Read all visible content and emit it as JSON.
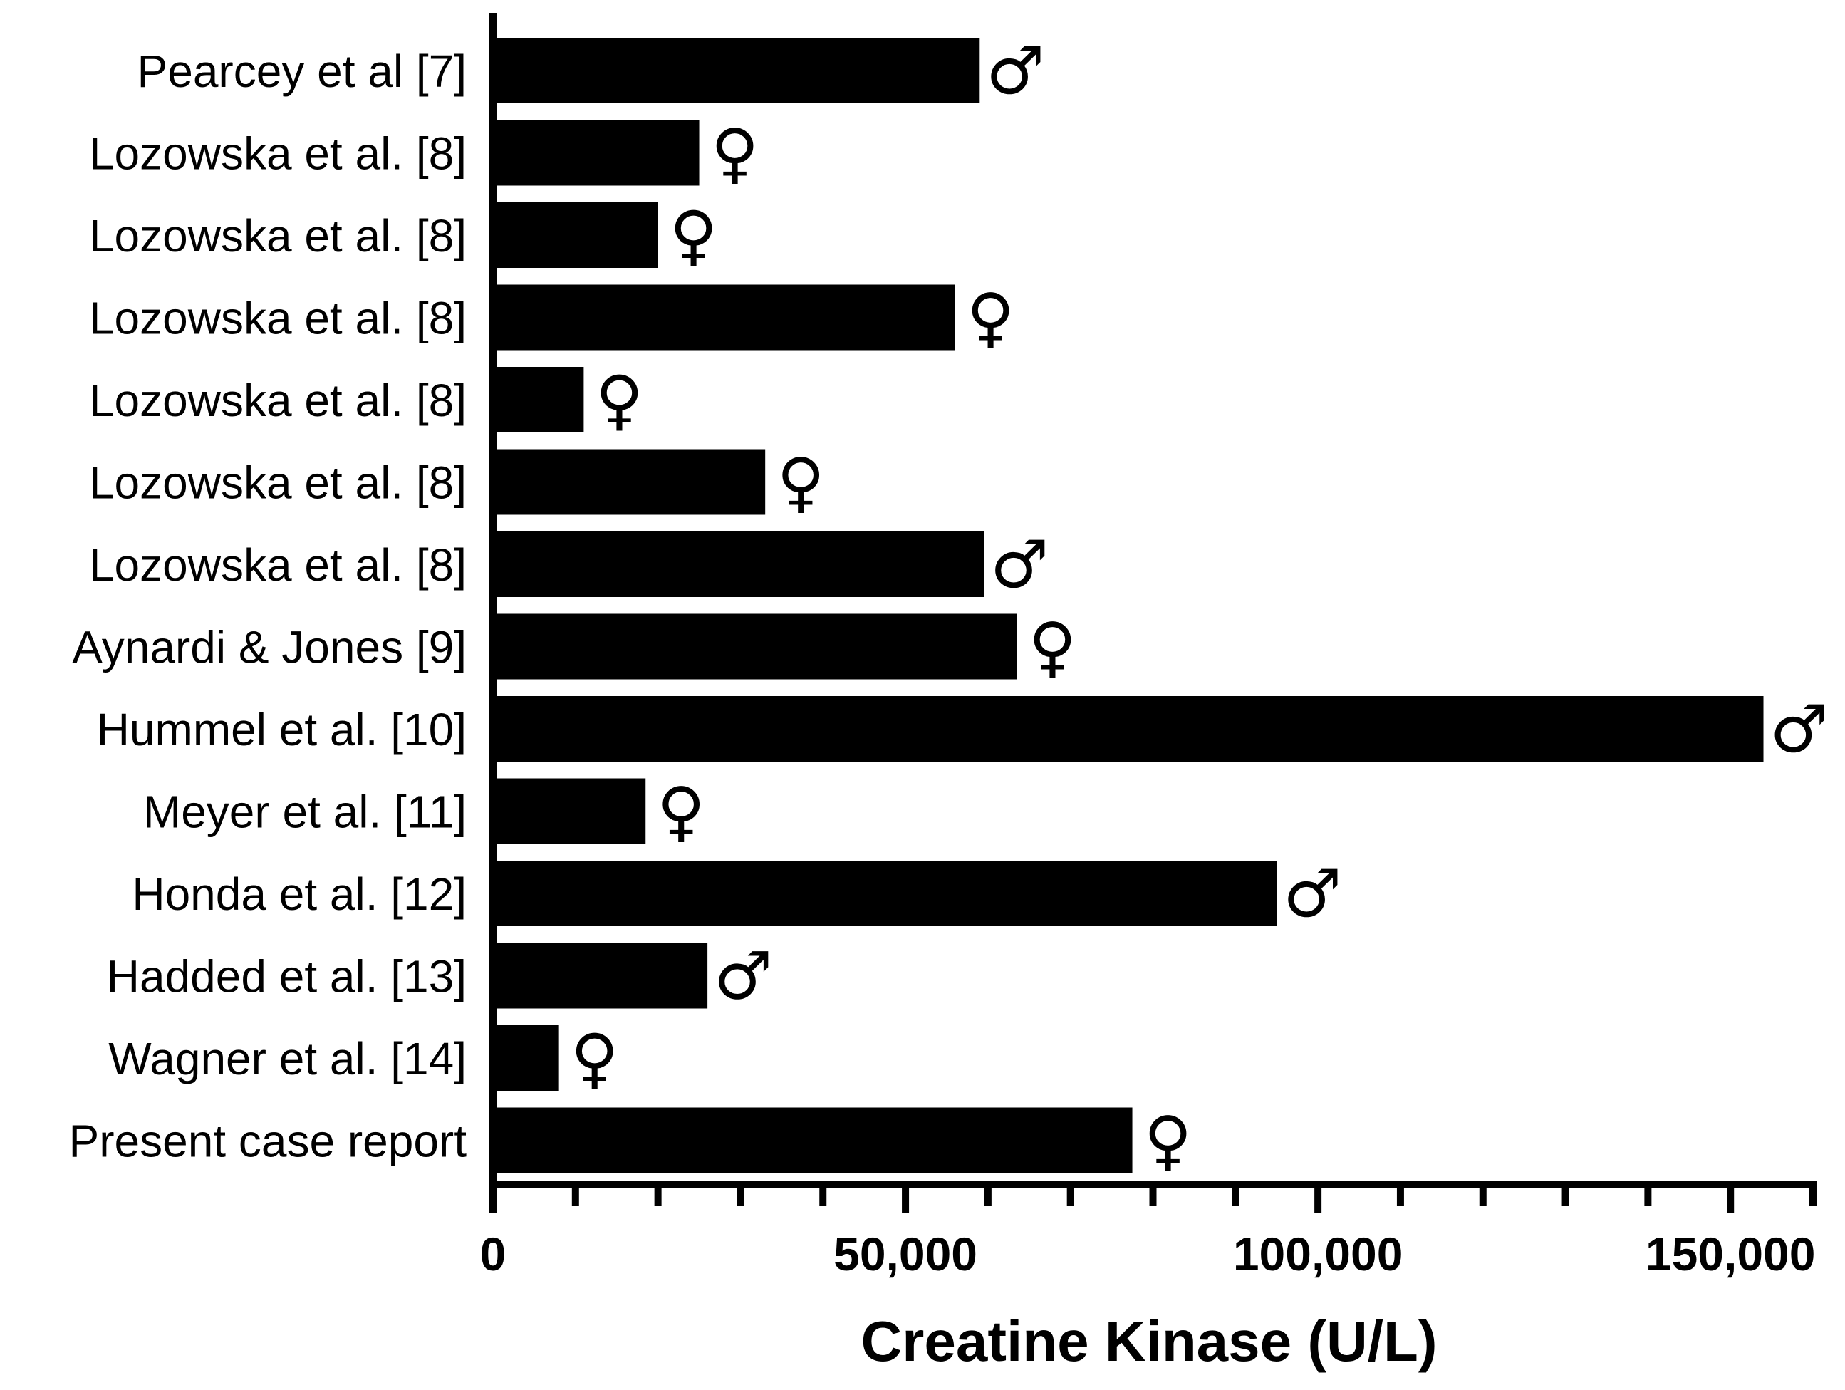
{
  "chart_data": {
    "type": "bar",
    "orientation": "horizontal",
    "title": "",
    "xlabel": "Creatine Kinase (U/L)",
    "ylabel": "",
    "xlim": [
      0,
      160000
    ],
    "x_ticks": [
      0,
      50000,
      100000,
      150000
    ],
    "x_tick_labels": [
      "0",
      "50,000",
      "100,000",
      "150,000"
    ],
    "minor_tick_step": 10000,
    "grid": false,
    "legend": "none",
    "bar_color": "#000000",
    "bars": [
      {
        "label": "Pearcey et al [7]",
        "value": 59000,
        "sex": "♂"
      },
      {
        "label": "Lozowska et al. [8]",
        "value": 25000,
        "sex": "♀"
      },
      {
        "label": "Lozowska et al. [8]",
        "value": 20000,
        "sex": "♀"
      },
      {
        "label": "Lozowska et al. [8]",
        "value": 56000,
        "sex": "♀"
      },
      {
        "label": "Lozowska et al. [8]",
        "value": 11000,
        "sex": "♀"
      },
      {
        "label": "Lozowska et al. [8]",
        "value": 33000,
        "sex": "♀"
      },
      {
        "label": "Lozowska et al. [8]",
        "value": 59500,
        "sex": "♂"
      },
      {
        "label": "Aynardi & Jones [9]",
        "value": 63500,
        "sex": "♀"
      },
      {
        "label": "Hummel et al. [10]",
        "value": 154000,
        "sex": "♂"
      },
      {
        "label": "Meyer et al. [11]",
        "value": 18500,
        "sex": "♀"
      },
      {
        "label": "Honda et al. [12]",
        "value": 95000,
        "sex": "♂"
      },
      {
        "label": "Hadded et al. [13]",
        "value": 26000,
        "sex": "♂"
      },
      {
        "label": "Wagner et al. [14]",
        "value": 8000,
        "sex": "♀"
      },
      {
        "label": "Present case report",
        "value": 77500,
        "sex": "♀"
      }
    ]
  }
}
